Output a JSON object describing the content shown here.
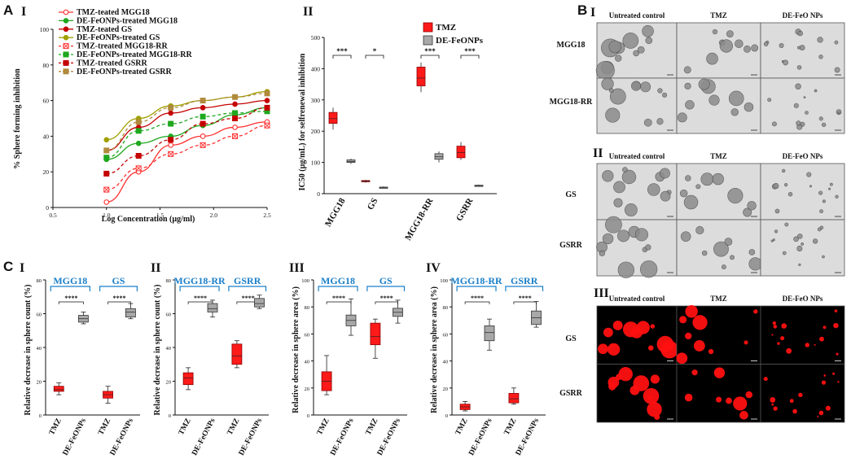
{
  "panel_letters": {
    "A": "A",
    "B": "B",
    "C": "C"
  },
  "panel_numerals": {
    "AI": "I",
    "AII": "II",
    "BI": "I",
    "BII": "II",
    "BIII": "III",
    "CI": "I",
    "CII": "II",
    "CIII": "III",
    "CIV": "IV"
  },
  "colors": {
    "tmz": "#ff1a1a",
    "fe": "#a8a8a8",
    "green": "#1fa81f",
    "olive": "#a0a000",
    "darkred": "#c40000",
    "tan": "#b08a3c",
    "blue": "#1a7fc9"
  },
  "chart_data": [
    {
      "id": "A-I",
      "type": "scatter",
      "title": "",
      "xlabel": "Log Concentration (µg/ml)",
      "ylabel": "% Sphere forming inhibition",
      "xlim": [
        0.5,
        2.5
      ],
      "ylim": [
        0,
        100
      ],
      "xticks": [
        "0.5",
        "1.0",
        "1.5",
        "2.0",
        "2.5"
      ],
      "yticks": [
        "0",
        "20",
        "40",
        "60",
        "80",
        "100"
      ],
      "x": [
        1.0,
        1.3,
        1.6,
        1.9,
        2.2,
        2.5
      ],
      "series": [
        {
          "name": "TMZ-teated MGG18",
          "color": "#ff3030",
          "marker": "circle-open",
          "dashed": false,
          "values": [
            3,
            20,
            35,
            40,
            45,
            48
          ]
        },
        {
          "name": "DE-FeONPs-treated MGG18",
          "color": "#1fa81f",
          "marker": "circle",
          "dashed": false,
          "values": [
            27,
            36,
            40,
            46,
            52,
            56
          ]
        },
        {
          "name": "TMZ-teated GS",
          "color": "#c40000",
          "marker": "circle",
          "dashed": false,
          "values": [
            32,
            45,
            53,
            56,
            58,
            60
          ]
        },
        {
          "name": "DE-FeONPs-treated GS",
          "color": "#a0a000",
          "marker": "circle",
          "dashed": false,
          "values": [
            38,
            50,
            57,
            60,
            62,
            65
          ]
        },
        {
          "name": "TMZ-treated MGG18-RR",
          "color": "#ff3030",
          "marker": "square-x",
          "dashed": true,
          "values": [
            10,
            22,
            30,
            35,
            40,
            46
          ]
        },
        {
          "name": "DE-FeONPs-treated MGG18-RR",
          "color": "#1fa81f",
          "marker": "square",
          "dashed": true,
          "values": [
            28,
            43,
            47,
            51,
            53,
            54
          ]
        },
        {
          "name": "TMZ-treated GSRR",
          "color": "#c40000",
          "marker": "square",
          "dashed": true,
          "values": [
            19,
            29,
            38,
            47,
            50,
            56
          ]
        },
        {
          "name": "DE-FeONPs-treated GSRR",
          "color": "#b08a3c",
          "marker": "square",
          "dashed": true,
          "values": [
            32,
            48,
            56,
            60,
            62,
            64
          ]
        }
      ]
    },
    {
      "id": "A-II",
      "type": "box",
      "title": "",
      "ylabel": "IC50 (µg/mL) for selfrenewal inhibition",
      "ylim": [
        0,
        500
      ],
      "yticks": [
        "0",
        "100",
        "200",
        "300",
        "400",
        "500"
      ],
      "categories": [
        "MGG18",
        "GS",
        "MGG18-RR",
        "GSRR"
      ],
      "legend": [
        "TMZ",
        "DE-FeONPs"
      ],
      "significance": [
        "***",
        "*",
        "***",
        "***"
      ],
      "series": [
        {
          "name": "TMZ",
          "boxes": [
            [
              205,
              225,
              240,
              260,
              275
            ],
            [
              35,
              38,
              40,
              42,
              44
            ],
            [
              325,
              345,
              370,
              405,
              420
            ],
            [
              108,
              115,
              132,
              152,
              165
            ]
          ]
        },
        {
          "name": "DE-FeONPs",
          "boxes": [
            [
              95,
              100,
              103,
              108,
              112
            ],
            [
              17,
              19,
              20,
              21,
              23
            ],
            [
              100,
              110,
              118,
              128,
              135
            ],
            [
              23,
              25,
              26,
              27,
              29
            ]
          ]
        }
      ]
    },
    {
      "id": "C-I",
      "type": "box",
      "ylabel": "Relative decrease in sphere count (%)",
      "ylim": [
        0,
        80
      ],
      "yticks": [
        "0",
        "20",
        "40",
        "60",
        "80"
      ],
      "groups": [
        "MGG18",
        "GS"
      ],
      "categories": [
        "TMZ",
        "DE-FeONPs",
        "TMZ",
        "DE-FeONPs"
      ],
      "significance": [
        "****",
        "****"
      ],
      "boxes": [
        [
          12,
          14,
          15,
          17,
          19
        ],
        [
          54,
          55,
          57,
          59,
          61
        ],
        [
          7,
          10,
          12,
          14,
          17
        ],
        [
          57,
          58,
          61,
          63,
          66
        ]
      ]
    },
    {
      "id": "C-II",
      "type": "box",
      "ylabel": "Relative decrease in sphere count (%)",
      "ylim": [
        0,
        80
      ],
      "yticks": [
        "0",
        "20",
        "40",
        "60",
        "80"
      ],
      "groups": [
        "MGG18-RR",
        "GSRR"
      ],
      "categories": [
        "TMZ",
        "DE-FeONPs",
        "TMZ",
        "DE-FeONPs"
      ],
      "significance": [
        "****",
        "****"
      ],
      "boxes": [
        [
          15,
          18,
          22,
          25,
          28
        ],
        [
          58,
          61,
          63,
          66,
          68
        ],
        [
          28,
          30,
          35,
          42,
          44
        ],
        [
          63,
          64,
          66,
          69,
          71
        ]
      ]
    },
    {
      "id": "C-III",
      "type": "box",
      "ylabel": "Relative decrease in sphere area (%)",
      "ylim": [
        0,
        100
      ],
      "yticks": [
        "0",
        "20",
        "40",
        "60",
        "80",
        "100"
      ],
      "groups": [
        "MGG18",
        "GS"
      ],
      "categories": [
        "TMZ",
        "DE-FeONPs",
        "TMZ",
        "DE-FeONPs"
      ],
      "significance": [
        "****",
        "****"
      ],
      "boxes": [
        [
          15,
          18,
          25,
          32,
          44
        ],
        [
          59,
          66,
          70,
          74,
          86
        ],
        [
          42,
          52,
          58,
          68,
          71
        ],
        [
          68,
          73,
          76,
          79,
          85
        ]
      ]
    },
    {
      "id": "C-IV",
      "type": "box",
      "ylabel": "Relative decrease in sphere area (%)",
      "ylim": [
        0,
        100
      ],
      "yticks": [
        "0",
        "20",
        "40",
        "60",
        "80",
        "100"
      ],
      "groups": [
        "MGG18-RR",
        "GSRR"
      ],
      "categories": [
        "TMZ",
        "DE-FeONPs",
        "TMZ",
        "DE-FeONPs"
      ],
      "significance": [
        "****",
        "****"
      ],
      "boxes": [
        [
          3,
          4,
          6,
          8,
          10
        ],
        [
          48,
          55,
          61,
          66,
          71
        ],
        [
          8,
          9,
          12,
          16,
          20
        ],
        [
          65,
          67,
          72,
          77,
          84
        ]
      ]
    }
  ],
  "micrographs": {
    "B_I": {
      "columns": [
        "Untreated control",
        "TMZ",
        "DE-FeO NPs"
      ],
      "rows": [
        "MGG18",
        "MGG18-RR"
      ]
    },
    "B_II": {
      "columns": [
        "Untreated control",
        "TMZ",
        "DE-FeO NPs"
      ],
      "rows": [
        "GS",
        "GSRR"
      ]
    },
    "B_III": {
      "columns": [
        "Untreated control",
        "TMZ",
        "DE-FeO NPs"
      ],
      "rows": [
        "GS",
        "GSRR"
      ]
    }
  }
}
